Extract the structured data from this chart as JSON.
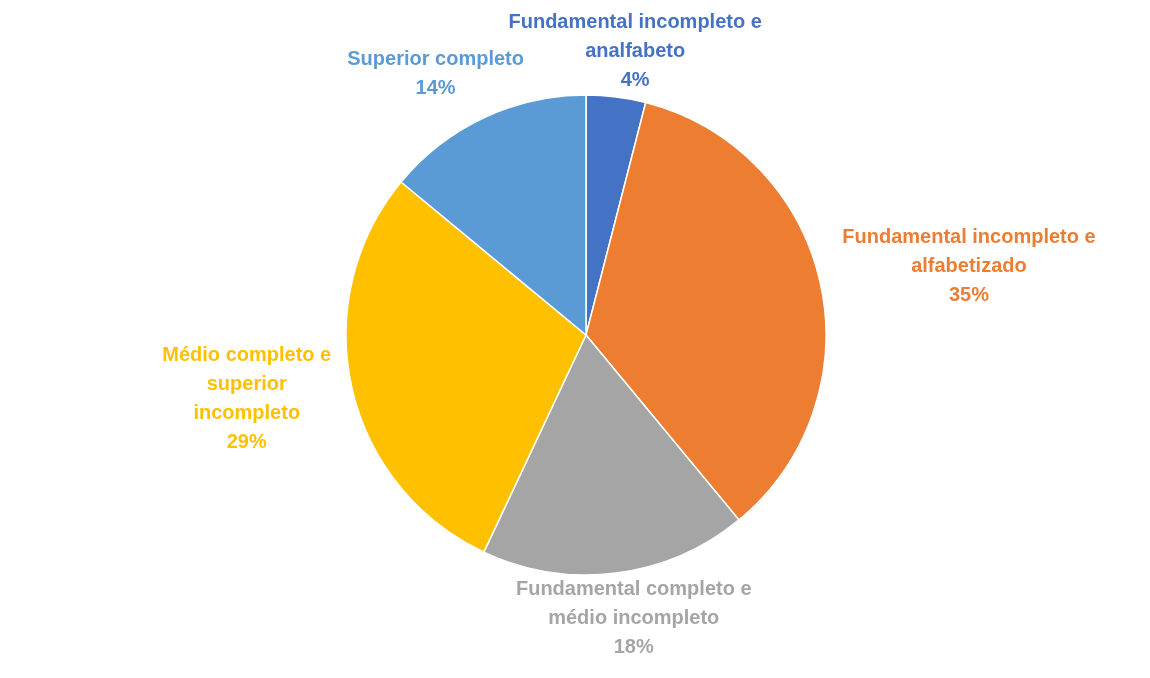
{
  "chart_data": {
    "type": "pie",
    "categories": [
      "Fundamental incompleto e analfabeto",
      "Fundamental incompleto e alfabetizado",
      "Fundamental completo e médio incompleto",
      "Médio completo e superior incompleto",
      "Superior completo"
    ],
    "values": [
      4,
      35,
      18,
      29,
      14
    ],
    "colors": [
      "#4472c4",
      "#ed7d31",
      "#a5a5a5",
      "#ffc000",
      "#5b9bd5"
    ],
    "value_labels": [
      "4%",
      "35%",
      "18%",
      "29%",
      "14%"
    ]
  }
}
